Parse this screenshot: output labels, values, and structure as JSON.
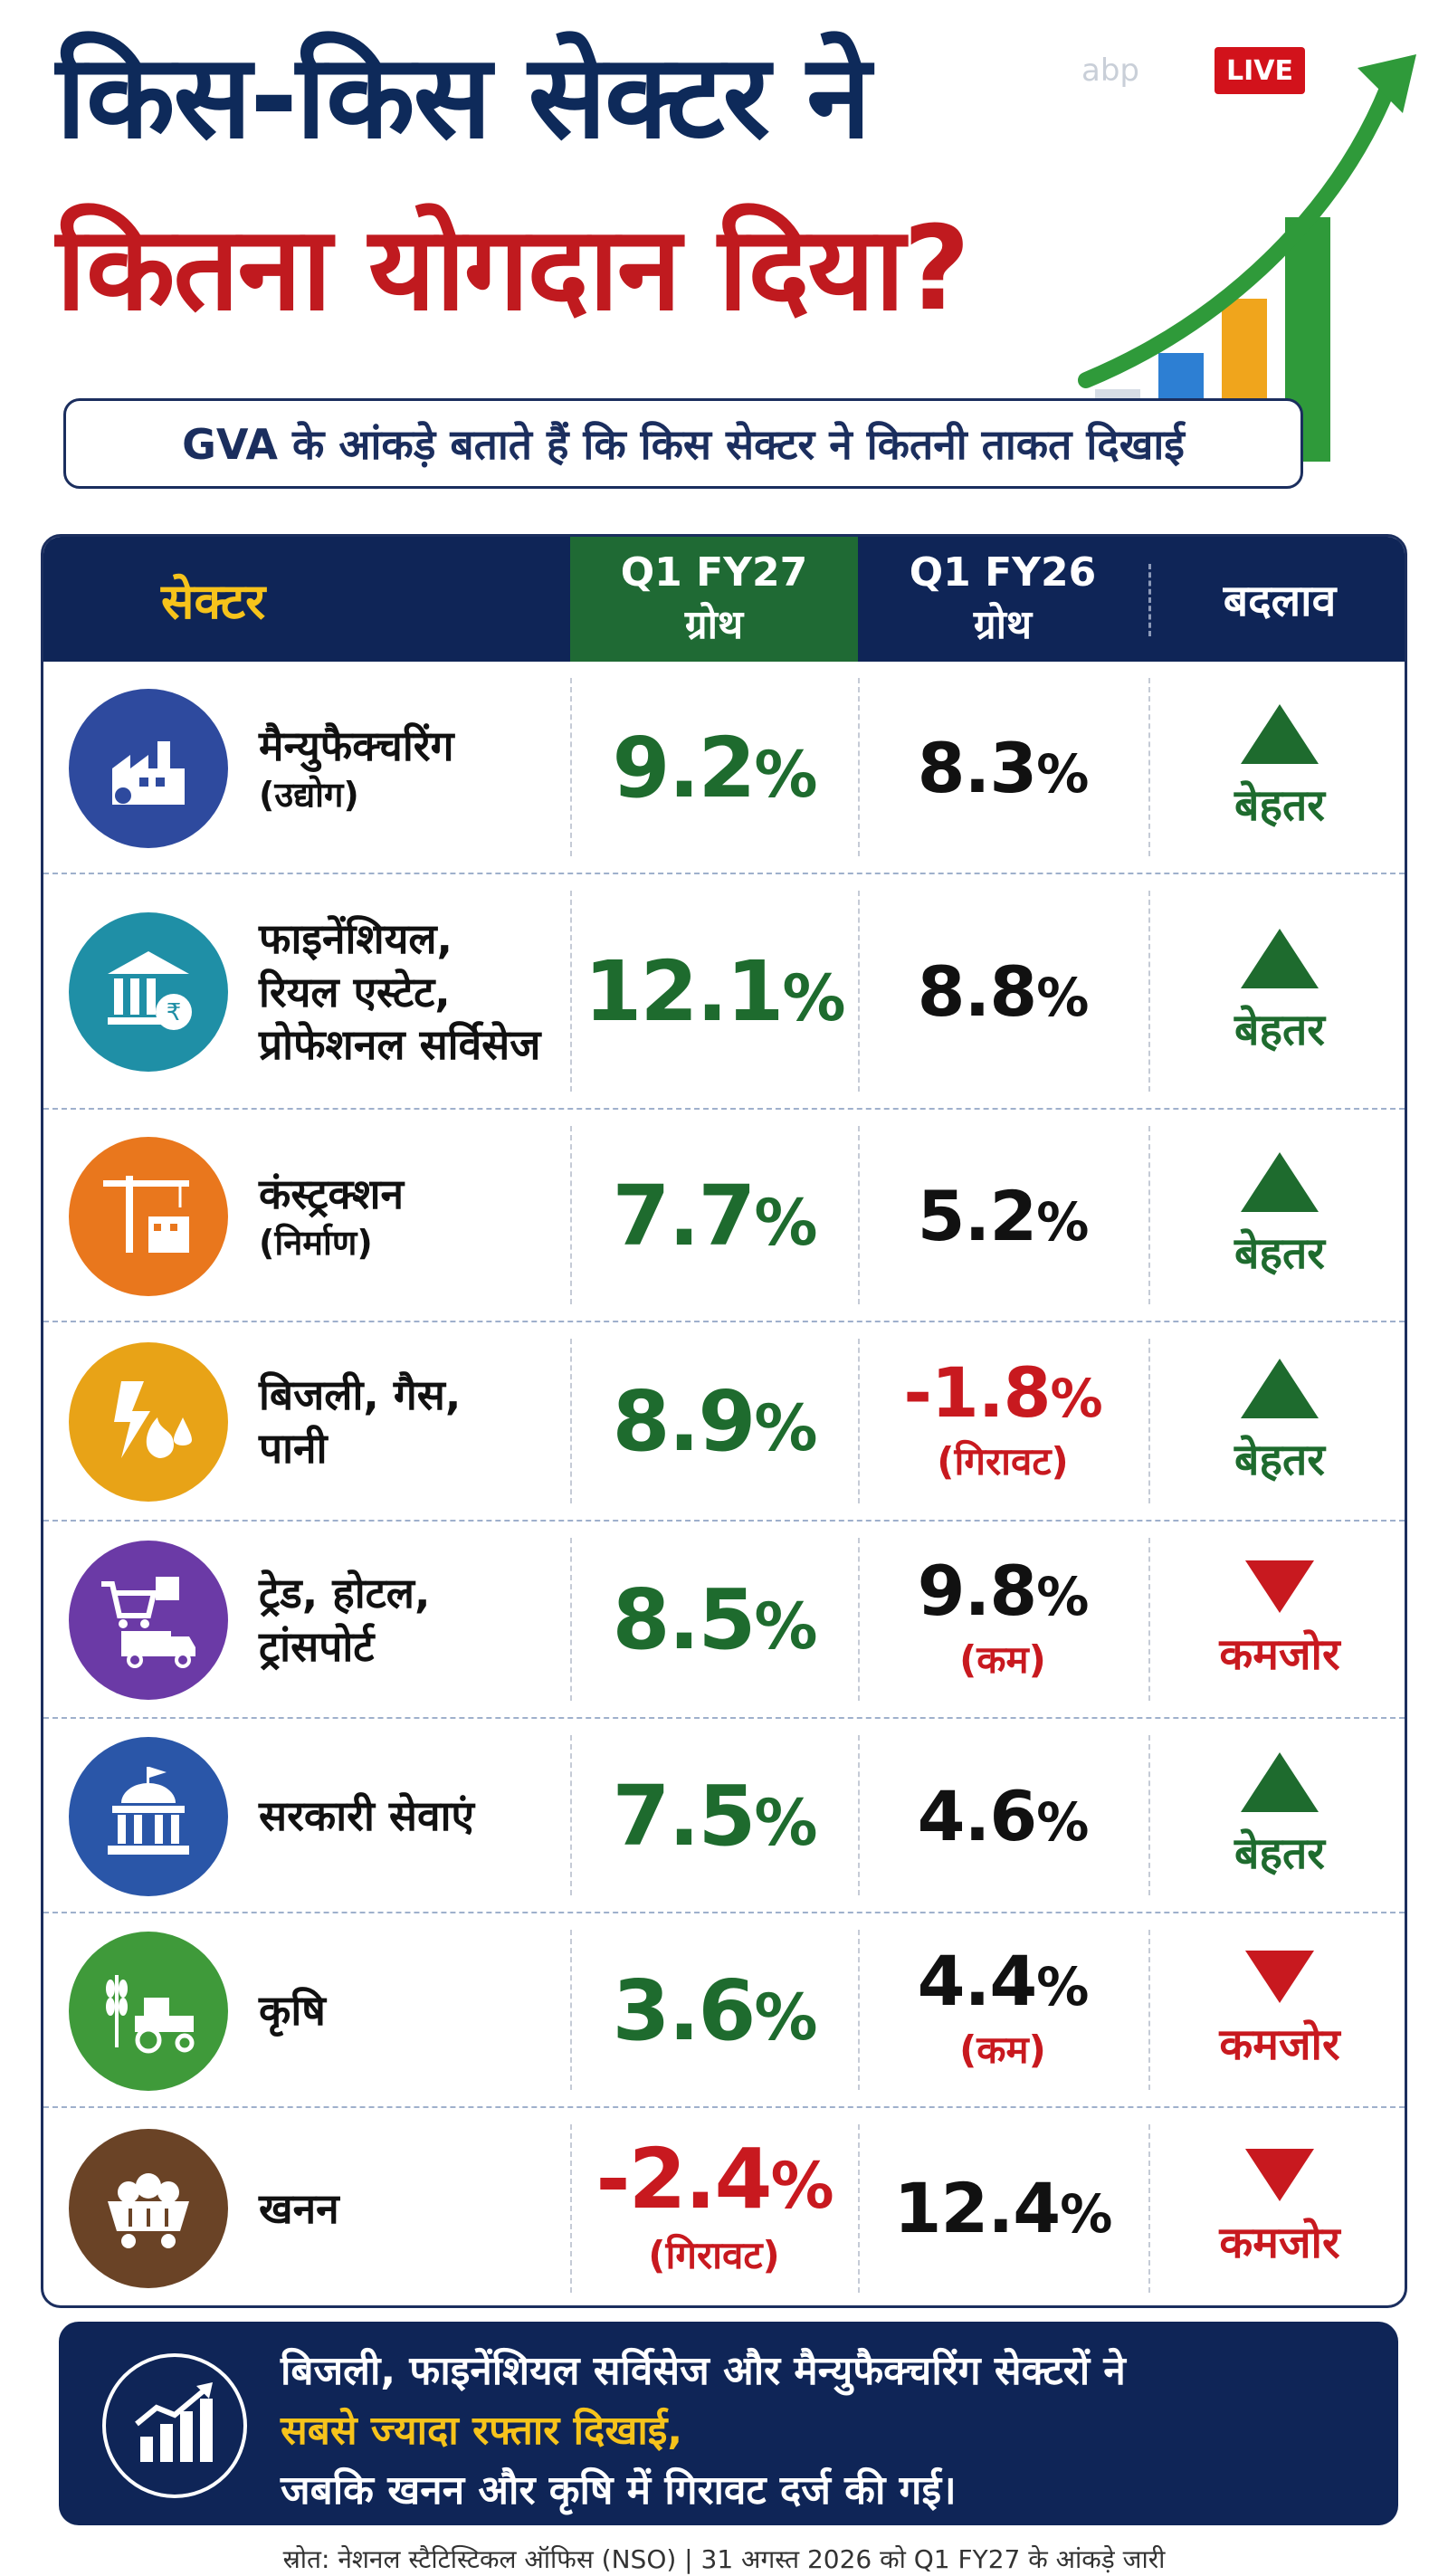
{
  "header": {
    "title_line1": "किस-किस सेक्टर ने",
    "title_line2": "कितना योगदान दिया?",
    "subtitle": "GVA के आंकड़े बताते हैं कि किस सेक्टर ने कितनी ताकत दिखाई",
    "logo": "abp",
    "live_badge": "LIVE"
  },
  "table": {
    "headers": {
      "sector": "सेक्टर",
      "q1fy27_line1": "Q1 FY27",
      "q1fy27_line2": "ग्रोथ",
      "q1fy26_line1": "Q1 FY26",
      "q1fy26_line2": "ग्रोथ",
      "change": "बदलाव"
    },
    "rows": [
      {
        "icon": "factory-icon",
        "icon_color": "#2e4a9e",
        "name_lines": [
          "मैन्युफैक्चरिंग"
        ],
        "sub": "(उद्योग)",
        "q27": "9.2",
        "q27_note": "",
        "q26": "8.3",
        "q26_note": "",
        "trend": "up",
        "change": "बेहतर"
      },
      {
        "icon": "bank-rupee-icon",
        "icon_color": "#1f8fa6",
        "name_lines": [
          "फाइनेंशियल,",
          "रियल एस्टेट,",
          "प्रोफेशनल सर्विसेज"
        ],
        "sub": "",
        "q27": "12.1",
        "q27_note": "",
        "q26": "8.8",
        "q26_note": "",
        "trend": "up",
        "change": "बेहतर"
      },
      {
        "icon": "crane-building-icon",
        "icon_color": "#e9771d",
        "name_lines": [
          "कंस्ट्रक्शन"
        ],
        "sub": "(निर्माण)",
        "q27": "7.7",
        "q27_note": "",
        "q26": "5.2",
        "q26_note": "",
        "trend": "up",
        "change": "बेहतर"
      },
      {
        "icon": "lightning-fire-water-icon",
        "icon_color": "#e8a317",
        "name_lines": [
          "बिजली, गैस,",
          "पानी"
        ],
        "sub": "",
        "q27": "8.9",
        "q27_note": "",
        "q26": "-1.8",
        "q26_note": "(गिरावट)",
        "trend": "up",
        "change": "बेहतर"
      },
      {
        "icon": "cart-truck-icon",
        "icon_color": "#6b3aa6",
        "name_lines": [
          "ट्रेड, होटल,",
          "ट्रांसपोर्ट"
        ],
        "sub": "",
        "q27": "8.5",
        "q27_note": "",
        "q26": "9.8",
        "q26_note": "(कम)",
        "trend": "down",
        "change": "कमजोर"
      },
      {
        "icon": "government-building-icon",
        "icon_color": "#2a56a8",
        "name_lines": [
          "सरकारी सेवाएं"
        ],
        "sub": "",
        "q27": "7.5",
        "q27_note": "",
        "q26": "4.6",
        "q26_note": "",
        "trend": "up",
        "change": "बेहतर"
      },
      {
        "icon": "tractor-wheat-icon",
        "icon_color": "#3f9a3a",
        "name_lines": [
          "कृषि"
        ],
        "sub": "",
        "q27": "3.6",
        "q27_note": "",
        "q26": "4.4",
        "q26_note": "(कम)",
        "trend": "down",
        "change": "कमजोर"
      },
      {
        "icon": "mining-cart-icon",
        "icon_color": "#6a4326",
        "name_lines": [
          "खनन"
        ],
        "sub": "",
        "q27": "-2.4",
        "q27_note": "(गिरावट)",
        "q26": "12.4",
        "q26_note": "",
        "trend": "down",
        "change": "कमजोर"
      }
    ],
    "percent_sign": "%"
  },
  "footer": {
    "icon": "growth-chart-icon",
    "line1": "बिजली, फाइनेंशियल सर्विसेज और मैन्युफैक्चरिंग सेक्टरों ने",
    "line2_highlight": "सबसे ज्यादा रफ्तार दिखाई,",
    "line3": "जबकि खनन और कृषि में गिरावट दर्ज की गई।"
  },
  "source": "स्रोत: नेशनल स्टैटिस्टिकल ऑफिस (NSO) | 31 अगस्त 2026 को Q1 FY27 के आंकड़े जारी",
  "colors": {
    "navy": "#0f2557",
    "green": "#1e6b2e",
    "red": "#c8191f",
    "yellow": "#f6c31b"
  }
}
